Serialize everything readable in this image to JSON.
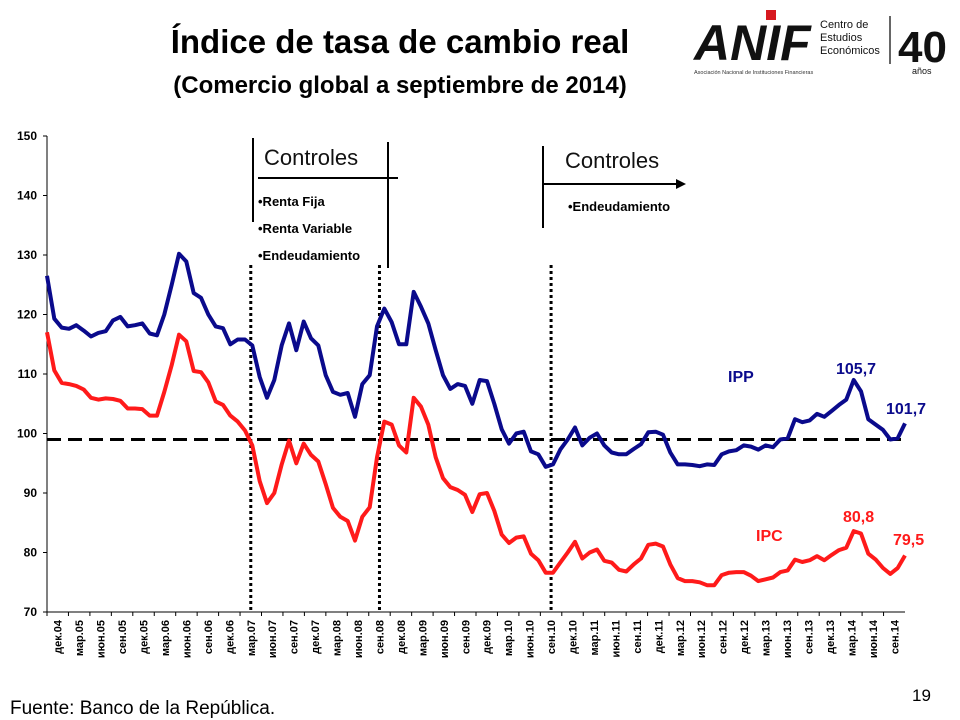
{
  "header": {
    "title": "Índice de tasa de cambio real",
    "subtitle": "(Comercio global a septiembre de 2014)"
  },
  "logo": {
    "brand": "ANIF",
    "tagline": "Asociación Nacional de Instituciones Financieras",
    "center_line1": "Centro de",
    "center_line2": "Estudios",
    "center_line3": "Económicos",
    "years_number": "40",
    "years_word": "años"
  },
  "footer": {
    "source": "Fuente: Banco de la República.",
    "page_number": "19"
  },
  "colors": {
    "ipp": "#0a0a8c",
    "ipc": "#ff1a1a",
    "reference": "#000000"
  },
  "chart_data": {
    "type": "line",
    "title": "Índice de tasa de cambio real",
    "ylim": [
      70,
      150
    ],
    "yticks": [
      70,
      80,
      90,
      100,
      110,
      120,
      130,
      140,
      150
    ],
    "x_tick_labels": [
      "дек.04",
      "мар.05",
      "июн.05",
      "сен.05",
      "дек.05",
      "мар.06",
      "июн.06",
      "сен.06",
      "дек.06",
      "мар.07",
      "июн.07",
      "сен.07",
      "дек.07",
      "мар.08",
      "июн.08",
      "сен.08",
      "дек.08",
      "мар.09",
      "июн.09",
      "сен.09",
      "дек.09",
      "мар.10",
      "июн.10",
      "сен.10",
      "дек.10",
      "мар.11",
      "июн.11",
      "сен.11",
      "дек.11",
      "мар.12",
      "июн.12",
      "сен.12",
      "дек.12",
      "мар.13",
      "июн.13",
      "сен.13",
      "дек.13",
      "мар.14",
      "июн.14",
      "сен.14"
    ],
    "reference_line": 99,
    "series": [
      {
        "name": "IPP",
        "values": [
          126.5,
          119.3,
          117.8,
          117.6,
          118.2,
          117.3,
          116.3,
          116.9,
          117.2,
          119,
          119.6,
          118,
          118.2,
          118.5,
          116.8,
          116.5,
          120,
          125,
          130.2,
          128.9,
          123.6,
          122.8,
          120,
          118,
          117.7,
          115,
          115.8,
          115.8,
          114.8,
          109.5,
          106,
          109,
          114.8,
          118.5,
          114,
          118.8,
          116,
          114.8,
          109.8,
          107,
          106.5,
          106.8,
          102.8,
          108.3,
          109.8,
          118,
          121,
          118.7,
          115,
          115,
          123.8,
          121.3,
          118.5,
          114,
          109.8,
          107.5,
          108.3,
          108,
          105,
          109,
          108.8,
          105,
          100.7,
          98.3,
          100,
          100.3,
          97,
          96.5,
          94.4,
          94.8,
          97.3,
          99,
          101,
          98,
          99.3,
          100,
          98,
          96.8,
          96.5,
          96.5,
          97.4,
          98.2,
          100.2,
          100.3,
          99.8,
          96.8,
          94.8,
          94.8,
          94.7,
          94.5,
          94.8,
          94.7,
          96.5,
          97,
          97.2,
          98,
          97.8,
          97.3,
          98,
          97.7,
          99,
          99.2,
          102.4,
          101.9,
          102.2,
          103.3,
          102.8,
          103.8,
          104.8,
          105.7,
          109,
          107.1,
          102.4,
          101.5,
          100.6,
          99,
          99.2,
          101.7
        ]
      },
      {
        "name": "IPC",
        "values": [
          117,
          110.6,
          108.5,
          108.3,
          108,
          107.4,
          106,
          105.7,
          105.9,
          105.8,
          105.5,
          104.2,
          104.2,
          104.1,
          103,
          103,
          107,
          111.5,
          116.6,
          115.5,
          110.5,
          110.3,
          108.6,
          105.4,
          104.8,
          103,
          102,
          100.5,
          98,
          92,
          88.3,
          90,
          94.8,
          98.8,
          95,
          98.3,
          96.4,
          95.3,
          91.5,
          87.5,
          86,
          85.3,
          82,
          86,
          87.6,
          96,
          102,
          101.5,
          98,
          96.8,
          106,
          104.5,
          101.5,
          96,
          92.5,
          91,
          90.5,
          89.7,
          86.8,
          89.8,
          90,
          87,
          83,
          81.6,
          82.5,
          82.7,
          79.8,
          78.7,
          76.6,
          76.6,
          78.3,
          80,
          81.8,
          79,
          80,
          80.5,
          78.6,
          78.3,
          77.1,
          76.8,
          78,
          79,
          81.3,
          81.5,
          81,
          78,
          75.7,
          75.2,
          75.2,
          75,
          74.5,
          74.5,
          76.2,
          76.6,
          76.7,
          76.7,
          76.1,
          75.2,
          75.5,
          75.8,
          76.7,
          77,
          78.8,
          78.4,
          78.7,
          79.4,
          78.7,
          79.6,
          80.4,
          80.8,
          83.6,
          83.2,
          79.8,
          78.8,
          77.4,
          76.4,
          77.4,
          79.5
        ]
      }
    ],
    "annotations": {
      "ipp_label": "IPP",
      "ipc_label": "IPC",
      "ipp_peak": "105,7",
      "ipp_last": "101,7",
      "ipc_peak": "80,8",
      "ipc_last": "79,5"
    },
    "controls": [
      {
        "title": "Controles",
        "items": [
          "•Renta Fija",
          "•Renta Variable",
          "•Endeudamiento"
        ]
      },
      {
        "title": "Controles",
        "items": [
          "•Endeudamiento"
        ]
      }
    ]
  }
}
